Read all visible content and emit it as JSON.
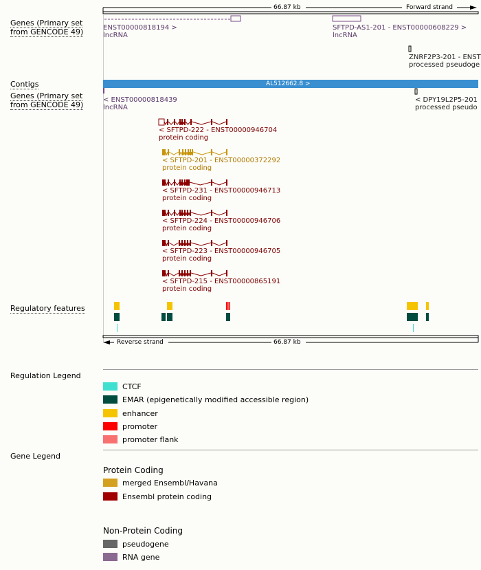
{
  "ruler_top": {
    "length": "66.87 kb",
    "strand": "Forward strand"
  },
  "ruler_bottom": {
    "length": "66.87 kb",
    "strand": "Reverse strand"
  },
  "tracks": {
    "genes_fwd": "Genes (Primary set from GENCODE 49)",
    "genes_fwd_l1": "Genes (Primary set",
    "genes_fwd_l2": "from GENCODE 49)",
    "contigs": "Contigs",
    "genes_rev_l1": "Genes (Primary set",
    "genes_rev_l2": "from GENCODE 49)",
    "regulatory": "Regulatory features"
  },
  "contig": {
    "label": "AL512662.8 >"
  },
  "fwd_genes": [
    {
      "name": "ENST00000818194 >",
      "type": "lncRNA"
    },
    {
      "name": "SFTPD-AS1-201 - ENST00000608229 >",
      "type": "lncRNA"
    },
    {
      "name": "ZNRF2P3-201 - ENST",
      "type": "processed pseudoge"
    }
  ],
  "rev_genes": [
    {
      "name": "< ENST00000818439",
      "type": "lncRNA"
    },
    {
      "name": "< DPY19L2P5-201",
      "type": "processed pseudo"
    }
  ],
  "transcripts": [
    {
      "name": "< SFTPD-222 - ENST00000946704",
      "type": "protein coding",
      "color": "#8b0000"
    },
    {
      "name": "< SFTPD-201 - ENST00000372292",
      "type": "protein coding",
      "color": "#c8960c"
    },
    {
      "name": "< SFTPD-231 - ENST00000946713",
      "type": "protein coding",
      "color": "#8b0000"
    },
    {
      "name": "< SFTPD-224 - ENST00000946706",
      "type": "protein coding",
      "color": "#8b0000"
    },
    {
      "name": "< SFTPD-223 - ENST00000946705",
      "type": "protein coding",
      "color": "#8b0000"
    },
    {
      "name": "< SFTPD-215 - ENST00000865191",
      "type": "protein coding",
      "color": "#8b0000"
    }
  ],
  "regulation_legend": {
    "title": "Regulation Legend",
    "items": [
      {
        "label": "CTCF",
        "color": "#40e0d0"
      },
      {
        "label": "EMAR (epigenetically modified accessible region)",
        "color": "#004d40"
      },
      {
        "label": "enhancer",
        "color": "#f5c400"
      },
      {
        "label": "promoter",
        "color": "#ff0000"
      },
      {
        "label": "promoter flank",
        "color": "#f87070"
      }
    ]
  },
  "gene_legend": {
    "title": "Gene Legend",
    "protein_coding": {
      "title": "Protein Coding",
      "items": [
        {
          "label": "merged Ensembl/Havana",
          "color": "#d4a020"
        },
        {
          "label": "Ensembl protein coding",
          "color": "#a00000"
        }
      ]
    },
    "non_protein_coding": {
      "title": "Non-Protein Coding",
      "items": [
        {
          "label": "pseudogene",
          "color": "#666666"
        },
        {
          "label": "RNA gene",
          "color": "#8a6a90"
        }
      ]
    }
  }
}
